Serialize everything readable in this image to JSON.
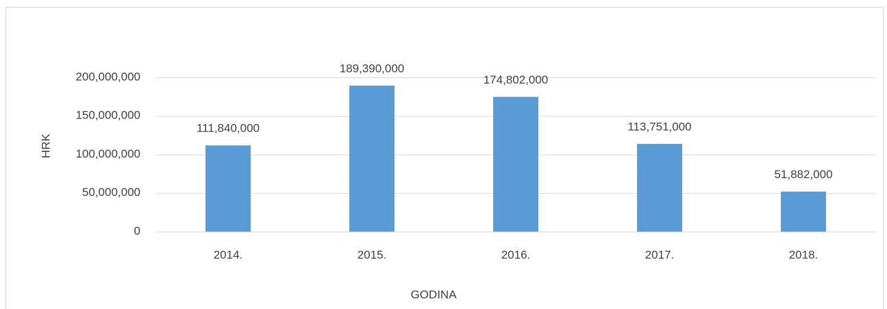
{
  "chart_data": {
    "type": "bar",
    "categories": [
      "2014.",
      "2015.",
      "2016.",
      "2017.",
      "2018."
    ],
    "values": [
      111840000,
      189390000,
      174802000,
      113751000,
      51882000
    ],
    "value_labels": [
      "111,840,000",
      "189,390,000",
      "174,802,000",
      "113,751,000",
      "51,882,000"
    ],
    "color": "#5b9bd5",
    "ylim": [
      0,
      200000000
    ],
    "yticks": [
      0,
      {
        "value": 50000000,
        "label": "50,000,000"
      },
      {
        "value": 100000000,
        "label": "100,000,000"
      },
      {
        "value": 150000000,
        "label": "150,000,000"
      },
      {
        "value": 200000000,
        "label": "200,000,000"
      }
    ],
    "grid": true,
    "x_label": "GODINA",
    "y_label": "HRK"
  }
}
